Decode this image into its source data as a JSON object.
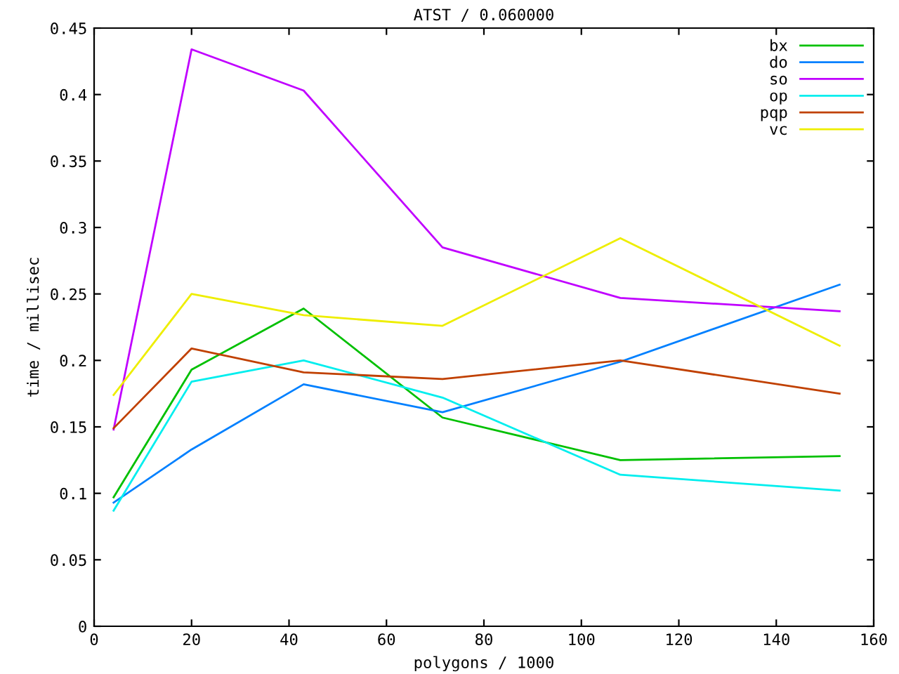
{
  "chart_data": {
    "type": "line",
    "title": "ATST / 0.060000",
    "xlabel": "polygons / 1000",
    "ylabel": "time / millisec",
    "x": [
      4,
      20,
      43,
      71.5,
      108,
      153
    ],
    "series": [
      {
        "name": "bx",
        "color": "#00c000",
        "values": [
          0.097,
          0.193,
          0.239,
          0.157,
          0.125,
          0.128
        ]
      },
      {
        "name": "do",
        "color": "#0080ff",
        "values": [
          0.093,
          0.133,
          0.182,
          0.161,
          0.199,
          0.257
        ]
      },
      {
        "name": "so",
        "color": "#c000ff",
        "values": [
          0.148,
          0.434,
          0.403,
          0.285,
          0.247,
          0.237
        ]
      },
      {
        "name": "op",
        "color": "#00eeee",
        "values": [
          0.087,
          0.184,
          0.2,
          0.172,
          0.114,
          0.102
        ]
      },
      {
        "name": "pqp",
        "color": "#c04000",
        "values": [
          0.149,
          0.209,
          0.191,
          0.186,
          0.2,
          0.175
        ]
      },
      {
        "name": "vc",
        "color": "#eeee00",
        "values": [
          0.174,
          0.25,
          0.234,
          0.226,
          0.292,
          0.211
        ]
      }
    ],
    "xlim": [
      0,
      160
    ],
    "xticks": [
      0,
      20,
      40,
      60,
      80,
      100,
      120,
      140,
      160
    ],
    "ylim": [
      0,
      0.45
    ],
    "yticks": [
      0,
      0.05,
      0.1,
      0.15,
      0.2,
      0.25,
      0.3,
      0.35,
      0.4,
      0.45
    ],
    "grid": false,
    "legend": "top right",
    "marker": "none",
    "line_style": "solid"
  }
}
